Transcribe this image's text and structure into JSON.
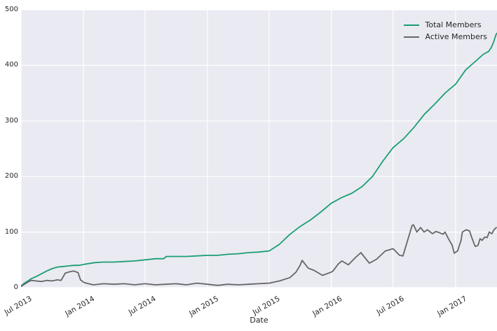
{
  "figure": {
    "background": "#ffffff",
    "plot_background": "#eaeaf2",
    "grid_color": "#ffffff",
    "text_color": "#262626"
  },
  "chart_data": {
    "type": "line",
    "title": "",
    "xlabel": "Date",
    "ylabel": "",
    "grid": true,
    "legend_position": "upper right",
    "x_unit": "days since 2013-07-01",
    "x_range": [
      0,
      1402
    ],
    "y_range": [
      0,
      500
    ],
    "y_ticks": [
      0,
      100,
      200,
      300,
      400,
      500
    ],
    "x_ticks": [
      {
        "day": 0,
        "label": "Jul 2013"
      },
      {
        "day": 184,
        "label": "Jan 2014"
      },
      {
        "day": 365,
        "label": "Jul 2014"
      },
      {
        "day": 549,
        "label": "Jan 2015"
      },
      {
        "day": 731,
        "label": "Jul 2015"
      },
      {
        "day": 914,
        "label": "Jan 2016"
      },
      {
        "day": 1096,
        "label": "Jul 2016"
      },
      {
        "day": 1280,
        "label": "Jan 2017"
      }
    ],
    "series": [
      {
        "name": "Total Members",
        "color": "#1b9e77",
        "points": [
          [
            0,
            3
          ],
          [
            10,
            8
          ],
          [
            20,
            12
          ],
          [
            30,
            16
          ],
          [
            45,
            20
          ],
          [
            61,
            25
          ],
          [
            76,
            30
          ],
          [
            91,
            34
          ],
          [
            107,
            37
          ],
          [
            124,
            38
          ],
          [
            140,
            39
          ],
          [
            155,
            40
          ],
          [
            170,
            40
          ],
          [
            186,
            42
          ],
          [
            217,
            45
          ],
          [
            243,
            46
          ],
          [
            274,
            46
          ],
          [
            304,
            47
          ],
          [
            335,
            48
          ],
          [
            365,
            50
          ],
          [
            396,
            52
          ],
          [
            420,
            52
          ],
          [
            428,
            56
          ],
          [
            457,
            56
          ],
          [
            487,
            56
          ],
          [
            518,
            57
          ],
          [
            549,
            58
          ],
          [
            579,
            58
          ],
          [
            609,
            60
          ],
          [
            640,
            61
          ],
          [
            670,
            63
          ],
          [
            700,
            64
          ],
          [
            731,
            66
          ],
          [
            761,
            78
          ],
          [
            792,
            96
          ],
          [
            822,
            110
          ],
          [
            853,
            122
          ],
          [
            883,
            136
          ],
          [
            914,
            152
          ],
          [
            944,
            162
          ],
          [
            975,
            170
          ],
          [
            1005,
            182
          ],
          [
            1035,
            200
          ],
          [
            1066,
            228
          ],
          [
            1096,
            252
          ],
          [
            1127,
            268
          ],
          [
            1157,
            288
          ],
          [
            1188,
            312
          ],
          [
            1218,
            330
          ],
          [
            1249,
            350
          ],
          [
            1264,
            358
          ],
          [
            1280,
            366
          ],
          [
            1310,
            392
          ],
          [
            1340,
            408
          ],
          [
            1362,
            420
          ],
          [
            1377,
            425
          ],
          [
            1385,
            432
          ],
          [
            1392,
            442
          ],
          [
            1399,
            455
          ],
          [
            1402,
            458
          ]
        ]
      },
      {
        "name": "Active Members",
        "color": "#666666",
        "points": [
          [
            0,
            2
          ],
          [
            10,
            6
          ],
          [
            20,
            10
          ],
          [
            30,
            13
          ],
          [
            45,
            12
          ],
          [
            61,
            11
          ],
          [
            76,
            13
          ],
          [
            91,
            12
          ],
          [
            107,
            14
          ],
          [
            118,
            13
          ],
          [
            130,
            26
          ],
          [
            140,
            28
          ],
          [
            155,
            30
          ],
          [
            168,
            27
          ],
          [
            175,
            14
          ],
          [
            186,
            9
          ],
          [
            213,
            5
          ],
          [
            243,
            7
          ],
          [
            274,
            6
          ],
          [
            304,
            7
          ],
          [
            335,
            5
          ],
          [
            365,
            7
          ],
          [
            396,
            5
          ],
          [
            426,
            6
          ],
          [
            457,
            7
          ],
          [
            487,
            5
          ],
          [
            518,
            8
          ],
          [
            549,
            6
          ],
          [
            579,
            4
          ],
          [
            609,
            6
          ],
          [
            640,
            5
          ],
          [
            670,
            6
          ],
          [
            700,
            7
          ],
          [
            731,
            8
          ],
          [
            761,
            12
          ],
          [
            792,
            18
          ],
          [
            810,
            28
          ],
          [
            822,
            40
          ],
          [
            828,
            49
          ],
          [
            846,
            35
          ],
          [
            863,
            31
          ],
          [
            888,
            22
          ],
          [
            914,
            28
          ],
          [
            919,
            30
          ],
          [
            935,
            43
          ],
          [
            945,
            48
          ],
          [
            964,
            41
          ],
          [
            985,
            54
          ],
          [
            1001,
            63
          ],
          [
            1026,
            44
          ],
          [
            1047,
            51
          ],
          [
            1073,
            66
          ],
          [
            1096,
            70
          ],
          [
            1115,
            58
          ],
          [
            1125,
            57
          ],
          [
            1152,
            112
          ],
          [
            1156,
            113
          ],
          [
            1166,
            100
          ],
          [
            1177,
            108
          ],
          [
            1187,
            100
          ],
          [
            1197,
            104
          ],
          [
            1212,
            97
          ],
          [
            1222,
            101
          ],
          [
            1232,
            99
          ],
          [
            1243,
            96
          ],
          [
            1249,
            100
          ],
          [
            1259,
            88
          ],
          [
            1270,
            76
          ],
          [
            1276,
            62
          ],
          [
            1286,
            66
          ],
          [
            1296,
            85
          ],
          [
            1300,
            100
          ],
          [
            1311,
            104
          ],
          [
            1321,
            102
          ],
          [
            1327,
            91
          ],
          [
            1335,
            78
          ],
          [
            1338,
            74
          ],
          [
            1346,
            76
          ],
          [
            1352,
            88
          ],
          [
            1358,
            85
          ],
          [
            1366,
            91
          ],
          [
            1373,
            90
          ],
          [
            1379,
            100
          ],
          [
            1387,
            97
          ],
          [
            1393,
            104
          ],
          [
            1400,
            108
          ]
        ]
      }
    ]
  }
}
